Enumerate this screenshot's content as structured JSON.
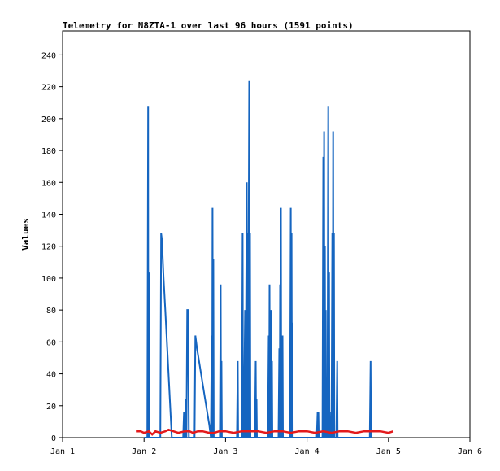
{
  "chart_data": {
    "type": "line",
    "title": "Telemetry for N8ZTA-1 over last 96 hours (1591 points)",
    "xlabel": "",
    "ylabel": "Values",
    "xlim": [
      0,
      5
    ],
    "ylim": [
      0,
      255
    ],
    "x_ticks": [
      {
        "value": 0,
        "label": "Jan 1"
      },
      {
        "value": 1,
        "label": "Jan 2"
      },
      {
        "value": 2,
        "label": "Jan 3"
      },
      {
        "value": 3,
        "label": "Jan 4"
      },
      {
        "value": 4,
        "label": "Jan 5"
      },
      {
        "value": 5,
        "label": "Jan 6"
      }
    ],
    "y_ticks": [
      0,
      20,
      40,
      60,
      80,
      100,
      120,
      140,
      160,
      180,
      200,
      220,
      240
    ],
    "grid": false,
    "series": [
      {
        "color": "#1565c0",
        "points": [
          [
            1.0,
            0
          ],
          [
            1.04,
            0
          ],
          [
            1.05,
            208
          ],
          [
            1.052,
            0
          ],
          [
            1.06,
            104
          ],
          [
            1.062,
            0
          ],
          [
            1.2,
            0
          ],
          [
            1.21,
            128
          ],
          [
            1.22,
            124
          ],
          [
            1.23,
            112
          ],
          [
            1.24,
            100
          ],
          [
            1.26,
            80
          ],
          [
            1.28,
            60
          ],
          [
            1.3,
            40
          ],
          [
            1.32,
            20
          ],
          [
            1.34,
            0
          ],
          [
            1.48,
            0
          ],
          [
            1.49,
            16
          ],
          [
            1.5,
            0
          ],
          [
            1.51,
            24
          ],
          [
            1.52,
            0
          ],
          [
            1.53,
            80
          ],
          [
            1.54,
            80
          ],
          [
            1.55,
            0
          ],
          [
            1.62,
            0
          ],
          [
            1.63,
            64
          ],
          [
            1.65,
            56
          ],
          [
            1.7,
            40
          ],
          [
            1.75,
            24
          ],
          [
            1.8,
            8
          ],
          [
            1.82,
            0
          ],
          [
            1.83,
            64
          ],
          [
            1.835,
            0
          ],
          [
            1.84,
            144
          ],
          [
            1.845,
            0
          ],
          [
            1.85,
            112
          ],
          [
            1.855,
            0
          ],
          [
            1.93,
            0
          ],
          [
            1.94,
            96
          ],
          [
            1.945,
            0
          ],
          [
            1.95,
            48
          ],
          [
            1.955,
            0
          ],
          [
            2.14,
            0
          ],
          [
            2.15,
            48
          ],
          [
            2.155,
            0
          ],
          [
            2.2,
            0
          ],
          [
            2.21,
            128
          ],
          [
            2.215,
            0
          ],
          [
            2.22,
            32
          ],
          [
            2.225,
            0
          ],
          [
            2.24,
            80
          ],
          [
            2.245,
            0
          ],
          [
            2.26,
            160
          ],
          [
            2.265,
            0
          ],
          [
            2.27,
            128
          ],
          [
            2.275,
            0
          ],
          [
            2.29,
            224
          ],
          [
            2.295,
            0
          ],
          [
            2.3,
            128
          ],
          [
            2.305,
            0
          ],
          [
            2.36,
            0
          ],
          [
            2.37,
            48
          ],
          [
            2.375,
            0
          ],
          [
            2.38,
            24
          ],
          [
            2.385,
            0
          ],
          [
            2.52,
            0
          ],
          [
            2.53,
            64
          ],
          [
            2.535,
            0
          ],
          [
            2.54,
            96
          ],
          [
            2.545,
            0
          ],
          [
            2.56,
            80
          ],
          [
            2.565,
            0
          ],
          [
            2.57,
            48
          ],
          [
            2.575,
            0
          ],
          [
            2.65,
            0
          ],
          [
            2.66,
            56
          ],
          [
            2.665,
            0
          ],
          [
            2.67,
            96
          ],
          [
            2.675,
            0
          ],
          [
            2.68,
            144
          ],
          [
            2.685,
            0
          ],
          [
            2.69,
            32
          ],
          [
            2.695,
            0
          ],
          [
            2.7,
            64
          ],
          [
            2.705,
            0
          ],
          [
            2.79,
            0
          ],
          [
            2.8,
            144
          ],
          [
            2.805,
            0
          ],
          [
            2.81,
            128
          ],
          [
            2.815,
            0
          ],
          [
            2.82,
            72
          ],
          [
            2.825,
            0
          ],
          [
            3.12,
            0
          ],
          [
            3.13,
            16
          ],
          [
            3.135,
            0
          ],
          [
            3.14,
            16
          ],
          [
            3.145,
            0
          ],
          [
            3.19,
            0
          ],
          [
            3.2,
            176
          ],
          [
            3.205,
            0
          ],
          [
            3.21,
            192
          ],
          [
            3.215,
            0
          ],
          [
            3.22,
            120
          ],
          [
            3.225,
            0
          ],
          [
            3.23,
            80
          ],
          [
            3.235,
            0
          ],
          [
            3.25,
            0
          ],
          [
            3.26,
            208
          ],
          [
            3.265,
            0
          ],
          [
            3.27,
            104
          ],
          [
            3.275,
            0
          ],
          [
            3.28,
            16
          ],
          [
            3.285,
            0
          ],
          [
            3.3,
            0
          ],
          [
            3.31,
            128
          ],
          [
            3.315,
            0
          ],
          [
            3.32,
            192
          ],
          [
            3.325,
            0
          ],
          [
            3.33,
            128
          ],
          [
            3.335,
            0
          ],
          [
            3.36,
            0
          ],
          [
            3.37,
            48
          ],
          [
            3.375,
            0
          ],
          [
            3.77,
            0
          ],
          [
            3.78,
            48
          ],
          [
            3.785,
            0
          ],
          [
            3.8,
            0
          ]
        ]
      },
      {
        "color": "#e31a1c",
        "points": [
          [
            0.9,
            4
          ],
          [
            0.96,
            4
          ],
          [
            1.0,
            3
          ],
          [
            1.06,
            4
          ],
          [
            1.1,
            2
          ],
          [
            1.14,
            4
          ],
          [
            1.2,
            3
          ],
          [
            1.26,
            4
          ],
          [
            1.3,
            5
          ],
          [
            1.36,
            4
          ],
          [
            1.42,
            3
          ],
          [
            1.5,
            4
          ],
          [
            1.56,
            4
          ],
          [
            1.6,
            3
          ],
          [
            1.66,
            4
          ],
          [
            1.72,
            4
          ],
          [
            1.8,
            3
          ],
          [
            1.86,
            3
          ],
          [
            1.92,
            4
          ],
          [
            2.0,
            4
          ],
          [
            2.1,
            3
          ],
          [
            2.2,
            4
          ],
          [
            2.3,
            4
          ],
          [
            2.4,
            4
          ],
          [
            2.5,
            3
          ],
          [
            2.6,
            4
          ],
          [
            2.7,
            4
          ],
          [
            2.8,
            3
          ],
          [
            2.9,
            4
          ],
          [
            3.0,
            4
          ],
          [
            3.1,
            3
          ],
          [
            3.2,
            4
          ],
          [
            3.3,
            3
          ],
          [
            3.4,
            4
          ],
          [
            3.5,
            4
          ],
          [
            3.6,
            3
          ],
          [
            3.7,
            4
          ],
          [
            3.8,
            4
          ],
          [
            3.9,
            4
          ],
          [
            4.0,
            3
          ],
          [
            4.06,
            4
          ]
        ]
      }
    ]
  }
}
